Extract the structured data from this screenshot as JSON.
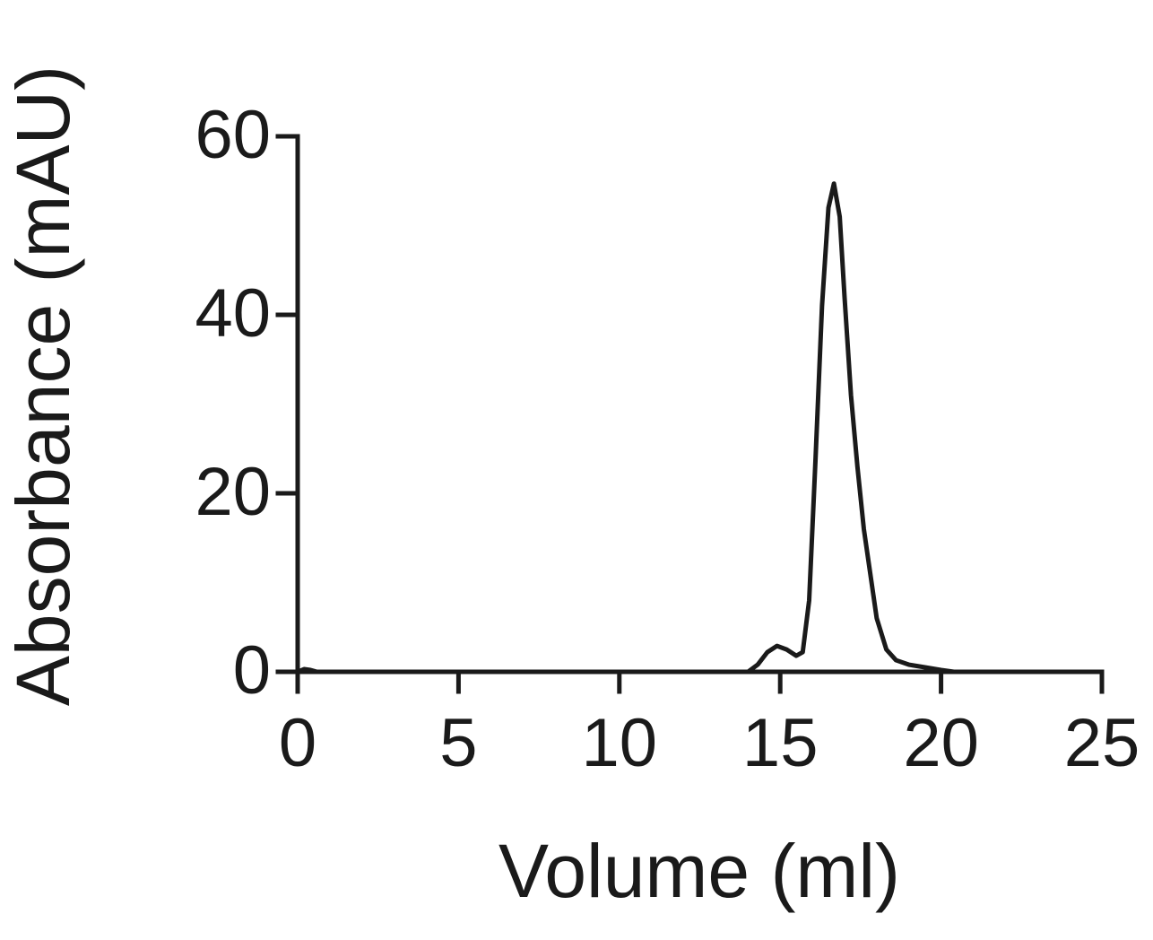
{
  "chart_data": {
    "type": "line",
    "xlabel": "Volume (ml)",
    "ylabel": "Absorbance (mAU)",
    "xlim": [
      0,
      25
    ],
    "xticks": [
      0,
      5,
      10,
      15,
      20,
      25
    ],
    "ylim": [
      0,
      60
    ],
    "yticks": [
      0,
      20,
      40,
      60
    ],
    "series": [
      {
        "color": "#1a1a1a",
        "x": [
          0,
          0.2,
          0.4,
          0.6,
          1,
          5,
          10,
          14,
          14.3,
          14.6,
          14.9,
          15.2,
          15.5,
          15.7,
          15.9,
          16.1,
          16.3,
          16.5,
          16.67,
          16.85,
          17.0,
          17.2,
          17.4,
          17.6,
          17.8,
          18.0,
          18.3,
          18.6,
          19.0,
          19.5,
          20.0,
          20.4
        ],
        "values": [
          0,
          0.3,
          0.2,
          0,
          0,
          0,
          0,
          0,
          0.8,
          2.2,
          2.9,
          2.5,
          1.8,
          2.2,
          8,
          24,
          41,
          52,
          54.7,
          51,
          42,
          31,
          23,
          16,
          11,
          6,
          2.5,
          1.3,
          0.8,
          0.5,
          0.2,
          0
        ]
      }
    ]
  }
}
